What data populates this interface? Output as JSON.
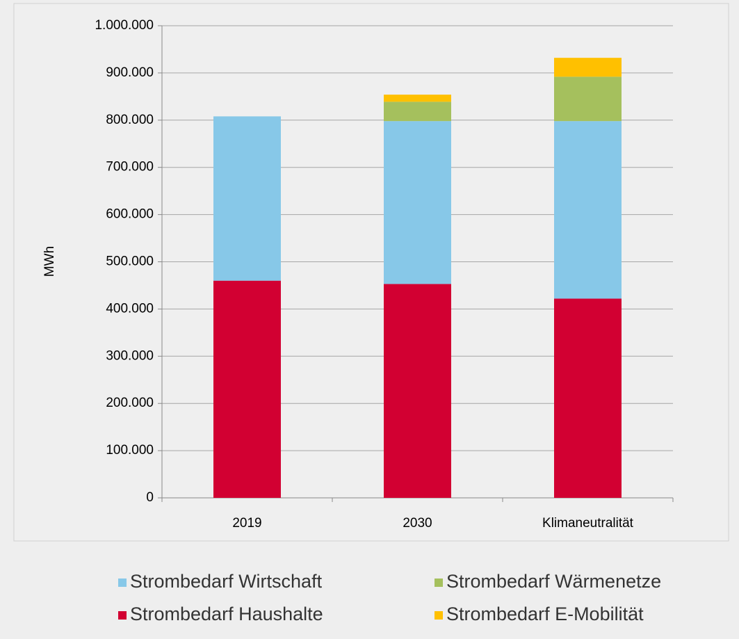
{
  "chart_data": {
    "type": "stacked_bar",
    "y_label": "MWh",
    "categories": [
      "2019",
      "2030",
      "Klimaneutralität"
    ],
    "series": [
      {
        "name": "Strombedarf Haushalte",
        "color": "#d20032",
        "values": [
          460000,
          453000,
          422000
        ]
      },
      {
        "name": "Strombedarf Wirtschaft",
        "color": "#87c8e8",
        "values": [
          348000,
          345000,
          376000
        ]
      },
      {
        "name": "Strombedarf Wärmenetze",
        "color": "#a5c05d",
        "values": [
          0,
          41000,
          94000
        ]
      },
      {
        "name": "Strombedarf E-Mobilität",
        "color": "#ffc000",
        "values": [
          0,
          15000,
          40000
        ]
      }
    ],
    "ylim": [
      0,
      1000000
    ],
    "yticks": [
      0,
      {
        "value": 100000,
        "label": "100.000"
      },
      {
        "value": 200000,
        "label": "200.000"
      },
      {
        "value": 300000,
        "label": "300.000"
      },
      {
        "value": 400000,
        "label": "400.000"
      },
      {
        "value": 500000,
        "label": "500.000"
      },
      {
        "value": 600000,
        "label": "600.000"
      },
      {
        "value": 700000,
        "label": "700.000"
      },
      {
        "value": 800000,
        "label": "800.000"
      },
      {
        "value": 900000,
        "label": "900.000"
      },
      {
        "value": 1000000,
        "label": "1.000.000"
      }
    ],
    "grid": true,
    "legend": "bottom"
  }
}
